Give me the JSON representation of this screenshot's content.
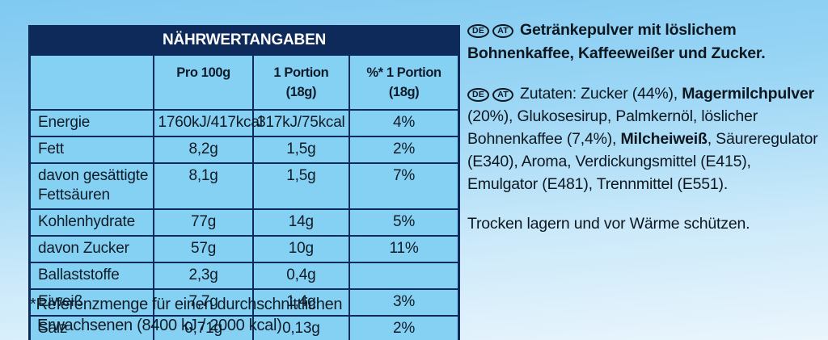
{
  "colors": {
    "navy": "#0e2a5a",
    "cell_blue": "#85d1f4",
    "text_dark": "#101b26",
    "bg_top": "#7fc9f1",
    "bg_bottom": "#eaf5fc"
  },
  "table": {
    "title": "NÄHRWERTANGABEN",
    "columns": [
      "",
      "Pro 100g",
      "1 Portion (18g)",
      "%* 1 Portion (18g)"
    ],
    "rows": [
      {
        "label": "Energie",
        "per100g": "1760kJ/417kcal",
        "portion": "317kJ/75kcal",
        "percent": "4%"
      },
      {
        "label": "Fett",
        "per100g": "8,2g",
        "portion": "1,5g",
        "percent": "2%"
      },
      {
        "label": "davon gesättigte Fettsäuren",
        "per100g": "8,1g",
        "portion": "1,5g",
        "percent": "7%"
      },
      {
        "label": "Kohlenhydrate",
        "per100g": "77g",
        "portion": "14g",
        "percent": "5%"
      },
      {
        "label": "davon Zucker",
        "per100g": "57g",
        "portion": "10g",
        "percent": "11%"
      },
      {
        "label": "Ballaststoffe",
        "per100g": "2,3g",
        "portion": "0,4g",
        "percent": ""
      },
      {
        "label": "Eiweiß",
        "per100g": "7,7g",
        "portion": "1,4g",
        "percent": "3%"
      },
      {
        "label": "Salz",
        "per100g": "0,71g",
        "portion": "0,13g",
        "percent": "2%"
      }
    ]
  },
  "footnote": {
    "lines": [
      "*Referenzmenge für einen durchschnittlichen",
      "Erwachsenen (8400 kJ / 2000 kcal)"
    ]
  },
  "right_panel": {
    "paragraphs": [
      {
        "badges": [
          "DE",
          "AT"
        ],
        "bold_para": true,
        "segments": [
          {
            "text": "Getränkepulver mit löslichem Bohnenkaffee, Kaffeeweißer und Zucker.",
            "bold": true
          }
        ]
      },
      {
        "badges": [
          "DE",
          "AT"
        ],
        "bold_para": false,
        "segments": [
          {
            "text": "Zutaten: Zucker (44%), ",
            "bold": false
          },
          {
            "text": "Magermilchpulver",
            "bold": true
          },
          {
            "text": " (20%), Glukosesirup, Palmkernöl, löslicher Bohnenkaffee (7,4%), ",
            "bold": false
          },
          {
            "text": "Milcheiweiß",
            "bold": true
          },
          {
            "text": ", Säureregulator (E340), Aroma, Verdickungsmittel (E415), Emulgator (E481), Trennmittel (E551).",
            "bold": false
          }
        ]
      },
      {
        "badges": [],
        "bold_para": false,
        "segments": [
          {
            "text": "Trocken lagern und vor Wärme schützen.",
            "bold": false
          }
        ]
      }
    ]
  }
}
